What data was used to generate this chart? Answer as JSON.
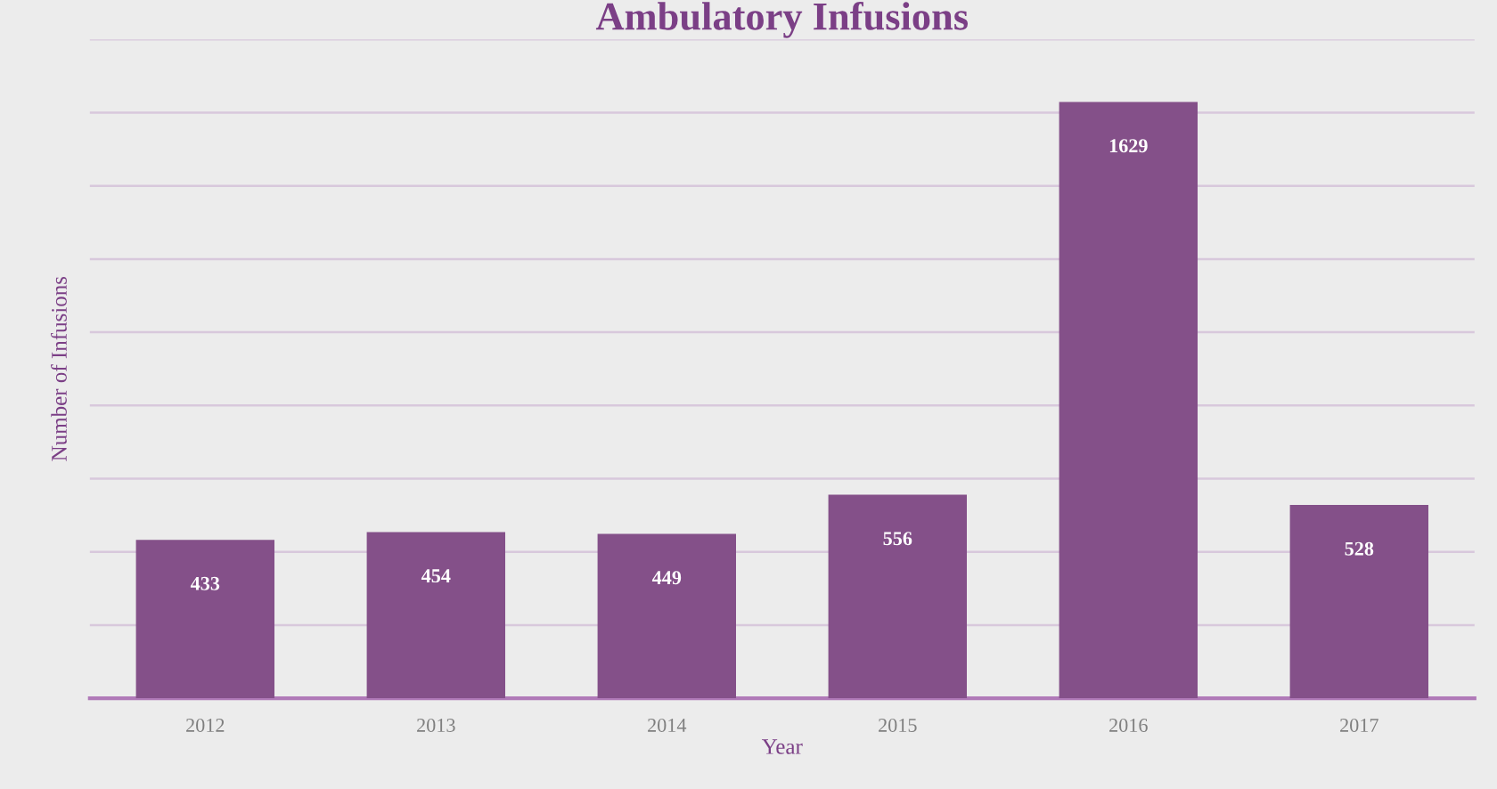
{
  "chart_data": {
    "type": "bar",
    "title": "Ambulatory Infusions",
    "xlabel": "Year",
    "ylabel": "Number of Infusions",
    "categories": [
      "2012",
      "2013",
      "2014",
      "2015",
      "2016",
      "2017"
    ],
    "values": [
      433,
      454,
      449,
      556,
      1629,
      528
    ],
    "color": "#845089",
    "ylim": [
      0,
      1800
    ],
    "yticks": [
      {
        "value": 0,
        "label": null
      },
      {
        "value": 200,
        "label": null
      },
      {
        "value": 400,
        "label": null
      },
      {
        "value": 600,
        "label": null
      },
      {
        "value": 800,
        "label": null
      },
      {
        "value": 1000,
        "label": null
      },
      {
        "value": 1200,
        "label": null
      },
      {
        "value": 1400,
        "label": null
      },
      {
        "value": 1600,
        "label": null
      },
      {
        "value": 1800,
        "label": null
      }
    ],
    "grid": "y",
    "data_labels": true,
    "tick_labels": "x"
  }
}
